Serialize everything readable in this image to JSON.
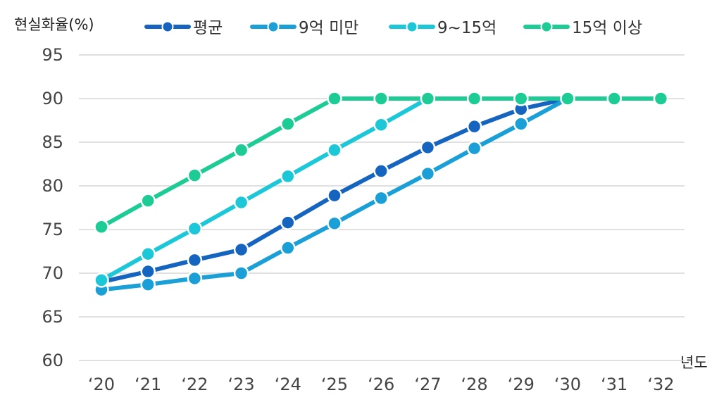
{
  "chart_data": {
    "type": "line",
    "ylabel": "현실화율(%)",
    "xlabel": "년도",
    "categories": [
      "‘20",
      "‘21",
      "‘22",
      "‘23",
      "‘24",
      "‘25",
      "‘26",
      "‘27",
      "‘28",
      "‘29",
      "‘30",
      "‘31",
      "‘32"
    ],
    "ylim": [
      60,
      95
    ],
    "yticks": [
      60,
      65,
      70,
      75,
      80,
      85,
      90,
      95
    ],
    "grid": true,
    "legend_position": "top",
    "series": [
      {
        "name": "평균",
        "color": "#1565c0",
        "values": [
          69.0,
          70.2,
          71.5,
          72.7,
          75.8,
          78.9,
          81.7,
          84.4,
          86.8,
          88.8,
          90.0,
          null,
          null
        ]
      },
      {
        "name": "9억 미만",
        "color": "#1a9fd6",
        "values": [
          68.1,
          68.7,
          69.4,
          70.0,
          72.9,
          75.7,
          78.6,
          81.4,
          84.3,
          87.1,
          90.0,
          null,
          null
        ]
      },
      {
        "name": "9~15억",
        "color": "#1cc8d8",
        "values": [
          69.2,
          72.2,
          75.1,
          78.1,
          81.1,
          84.1,
          87.0,
          90.0,
          null,
          null,
          null,
          null,
          null
        ]
      },
      {
        "name": "15억 이상",
        "color": "#1dcb95",
        "values": [
          75.3,
          78.3,
          81.2,
          84.1,
          87.1,
          90.0,
          90.0,
          90.0,
          90.0,
          90.0,
          90.0,
          90.0,
          90.0
        ]
      }
    ]
  }
}
